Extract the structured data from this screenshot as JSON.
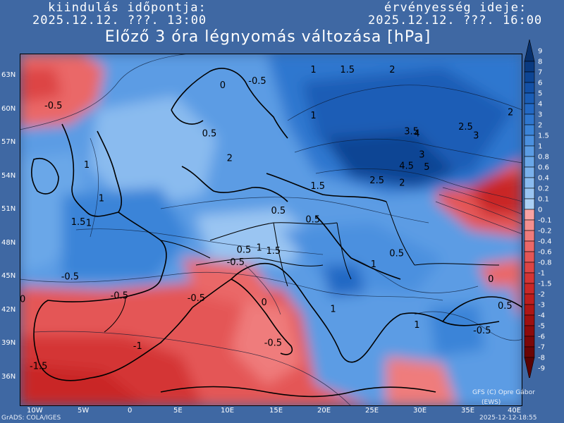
{
  "header": {
    "start_label": "kiindulás időpontja:",
    "start_value": "2025.12.12. ???. 13:00",
    "valid_label": "érvényesség ideje:",
    "valid_value": "2025.12.12. ???. 16:00",
    "title": "Előző 3 óra légnyomás változása [hPa]"
  },
  "axes": {
    "lat_labels": [
      "63N",
      "60N",
      "57N",
      "54N",
      "51N",
      "48N",
      "45N",
      "42N",
      "39N",
      "36N"
    ],
    "lon_labels": [
      "10W",
      "5W",
      "0",
      "5E",
      "10E",
      "15E",
      "20E",
      "25E",
      "30E",
      "35E",
      "40E"
    ]
  },
  "legend": {
    "levels": [
      "9",
      "8",
      "7",
      "6",
      "5",
      "4",
      "3",
      "2",
      "1.5",
      "1",
      "0.8",
      "0.6",
      "0.4",
      "0.2",
      "0.1",
      "0",
      "-0.1",
      "-0.2",
      "-0.4",
      "-0.6",
      "-0.8",
      "-1",
      "-1.5",
      "-2",
      "-3",
      "-4",
      "-5",
      "-6",
      "-7",
      "-8",
      "-9"
    ],
    "colors": [
      "#08306b",
      "#0a3a80",
      "#0d4594",
      "#1350a6",
      "#1a5db6",
      "#2369c4",
      "#2f77cf",
      "#3b84d8",
      "#4b90df",
      "#5b9ce4",
      "#6aa7e8",
      "#7ab1ec",
      "#8abbef",
      "#9ac5f2",
      "#abd0f5",
      "#f8a3a3",
      "#f48f8f",
      "#ef7b7b",
      "#ea6868",
      "#e45656",
      "#dd4545",
      "#d43535",
      "#c92828",
      "#bd1e1e",
      "#ae1616",
      "#9e1010",
      "#8d0b0b",
      "#7c0808",
      "#6b0505",
      "#5a0303"
    ]
  },
  "contour_labels": [
    {
      "text": "-0.5",
      "lon": -8.5,
      "lat": 59.8
    },
    {
      "text": "0",
      "lon": 9.3,
      "lat": 61.6
    },
    {
      "text": "-0.5",
      "lon": 12.2,
      "lat": 62.0
    },
    {
      "text": "1",
      "lon": 18.5,
      "lat": 63.0
    },
    {
      "text": "1.5",
      "lon": 21.5,
      "lat": 63.0
    },
    {
      "text": "2",
      "lon": 26.5,
      "lat": 63.0
    },
    {
      "text": "2",
      "lon": 38.5,
      "lat": 59.2
    },
    {
      "text": "1",
      "lon": 18.5,
      "lat": 58.9
    },
    {
      "text": "2.5",
      "lon": 33.5,
      "lat": 57.9
    },
    {
      "text": "3.5",
      "lon": 28.0,
      "lat": 57.5
    },
    {
      "text": "4",
      "lon": 29.0,
      "lat": 57.3
    },
    {
      "text": "3",
      "lon": 35.0,
      "lat": 57.1
    },
    {
      "text": "0.5",
      "lon": 7.5,
      "lat": 57.3
    },
    {
      "text": "1",
      "lon": -4.5,
      "lat": 54.5
    },
    {
      "text": "2",
      "lon": 10.0,
      "lat": 55.1
    },
    {
      "text": "3",
      "lon": 29.5,
      "lat": 55.4
    },
    {
      "text": "4.5",
      "lon": 27.5,
      "lat": 54.4
    },
    {
      "text": "5",
      "lon": 30.0,
      "lat": 54.3
    },
    {
      "text": "2.5",
      "lon": 24.5,
      "lat": 53.1
    },
    {
      "text": "2",
      "lon": 27.5,
      "lat": 52.9
    },
    {
      "text": "1.5",
      "lon": 18.5,
      "lat": 52.6
    },
    {
      "text": "1",
      "lon": -3.0,
      "lat": 51.5
    },
    {
      "text": "0.5",
      "lon": 14.5,
      "lat": 50.4
    },
    {
      "text": "1.5",
      "lon": -5.8,
      "lat": 49.4
    },
    {
      "text": "1",
      "lon": -4.3,
      "lat": 49.3
    },
    {
      "text": "0.5",
      "lon": 18.0,
      "lat": 49.6
    },
    {
      "text": "-0.5",
      "lon": 10.0,
      "lat": 45.8
    },
    {
      "text": "0.5",
      "lon": 11.0,
      "lat": 46.9
    },
    {
      "text": "1",
      "lon": 13.0,
      "lat": 47.1
    },
    {
      "text": "1.5",
      "lon": 14.0,
      "lat": 46.8
    },
    {
      "text": "0.5",
      "lon": 26.5,
      "lat": 46.6
    },
    {
      "text": "1",
      "lon": 24.6,
      "lat": 45.6
    },
    {
      "text": "-0.5",
      "lon": -6.8,
      "lat": 44.5
    },
    {
      "text": "-0.5",
      "lon": 6.0,
      "lat": 42.6
    },
    {
      "text": "0",
      "lon": -11.0,
      "lat": 42.5
    },
    {
      "text": "-0.5",
      "lon": -1.8,
      "lat": 42.8
    },
    {
      "text": "0",
      "lon": 13.5,
      "lat": 42.2
    },
    {
      "text": "1",
      "lon": 20.5,
      "lat": 41.6
    },
    {
      "text": "0",
      "lon": 36.5,
      "lat": 44.3
    },
    {
      "text": "0.5",
      "lon": 37.5,
      "lat": 41.9
    },
    {
      "text": "-0.5",
      "lon": 35.0,
      "lat": 39.7
    },
    {
      "text": "-1",
      "lon": 0.5,
      "lat": 38.3
    },
    {
      "text": "-0.5",
      "lon": 13.8,
      "lat": 38.6
    },
    {
      "text": "-1.5",
      "lon": -10.0,
      "lat": 36.5
    },
    {
      "text": "1",
      "lon": 29.0,
      "lat": 40.2
    }
  ],
  "footer": {
    "copyright": "GFS (C) Opre Gábor",
    "ews": "(EWS)",
    "grads": "GrADS: COLA/IGES",
    "timestamp": "2025-12-12-18:55"
  }
}
